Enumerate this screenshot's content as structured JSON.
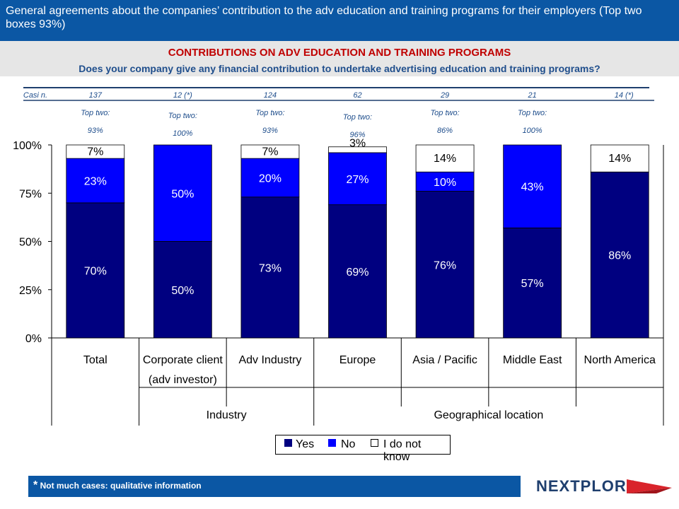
{
  "header": {
    "title": "General agreements about the companies’ contribution to the adv education and training programs for their employers (Top two boxes 93%)"
  },
  "subheader": {
    "title": "CONTRIBUTIONS ON ADV EDUCATION AND TRAINING PROGRAMS",
    "question": "Does your company give any financial contribution to undertake advertising education and training programs?"
  },
  "cases_label": "Casi n.",
  "footer": {
    "star": "*",
    "note": "Not much cases: qualitative information"
  },
  "logo": {
    "text": "NEXTPLORA"
  },
  "colors": {
    "yes": "#000080",
    "no": "#0000ff",
    "dont_know": "#ffffff",
    "header_bg": "#0b57a4",
    "subtitle": "#c00000",
    "question": "#1f4e8c"
  },
  "chart_data": {
    "type": "bar",
    "stacked": true,
    "categories": [
      "Total",
      "Corporate client (adv investor)",
      "Adv Industry",
      "Europe",
      "Asia / Pacific",
      "Middle East",
      "North America"
    ],
    "category_lines": [
      [
        "Total"
      ],
      [
        "Corporate client",
        "(adv investor)"
      ],
      [
        "Adv Industry"
      ],
      [
        "Europe"
      ],
      [
        "Asia / Pacific"
      ],
      [
        "Middle East"
      ],
      [
        "North America"
      ]
    ],
    "groups": [
      {
        "label": "Industry",
        "categories": [
          "Corporate client (adv investor)",
          "Adv Industry"
        ]
      },
      {
        "label": "Geographical location",
        "categories": [
          "Europe",
          "Asia / Pacific",
          "Middle East",
          "North America"
        ]
      }
    ],
    "cases": [
      "137",
      "12 (*)",
      "124",
      "62",
      "29",
      "21",
      "14 (*)"
    ],
    "top_two_label": "Top two:",
    "top_two": [
      "93%",
      "100%",
      "93%",
      "96%",
      "86%",
      "100%",
      ""
    ],
    "series": [
      {
        "name": "Yes",
        "values": [
          70,
          50,
          73,
          69,
          76,
          57,
          86
        ],
        "labels": [
          "70%",
          "50%",
          "73%",
          "69%",
          "76%",
          "57%",
          "86%"
        ]
      },
      {
        "name": "No",
        "values": [
          23,
          50,
          20,
          27,
          10,
          43,
          0
        ],
        "labels": [
          "23%",
          "50%",
          "20%",
          "27%",
          "10%",
          "43%",
          ""
        ]
      },
      {
        "name": "I do not know",
        "values": [
          7,
          0,
          7,
          3,
          14,
          0,
          14
        ],
        "labels": [
          "7%",
          "",
          "7%",
          "3%",
          "14%",
          "",
          "14%"
        ]
      }
    ],
    "yticks": [
      "0%",
      "25%",
      "50%",
      "75%",
      "100%"
    ],
    "ylim": [
      0,
      100
    ],
    "grid": false,
    "legend_position": "bottom-center"
  }
}
